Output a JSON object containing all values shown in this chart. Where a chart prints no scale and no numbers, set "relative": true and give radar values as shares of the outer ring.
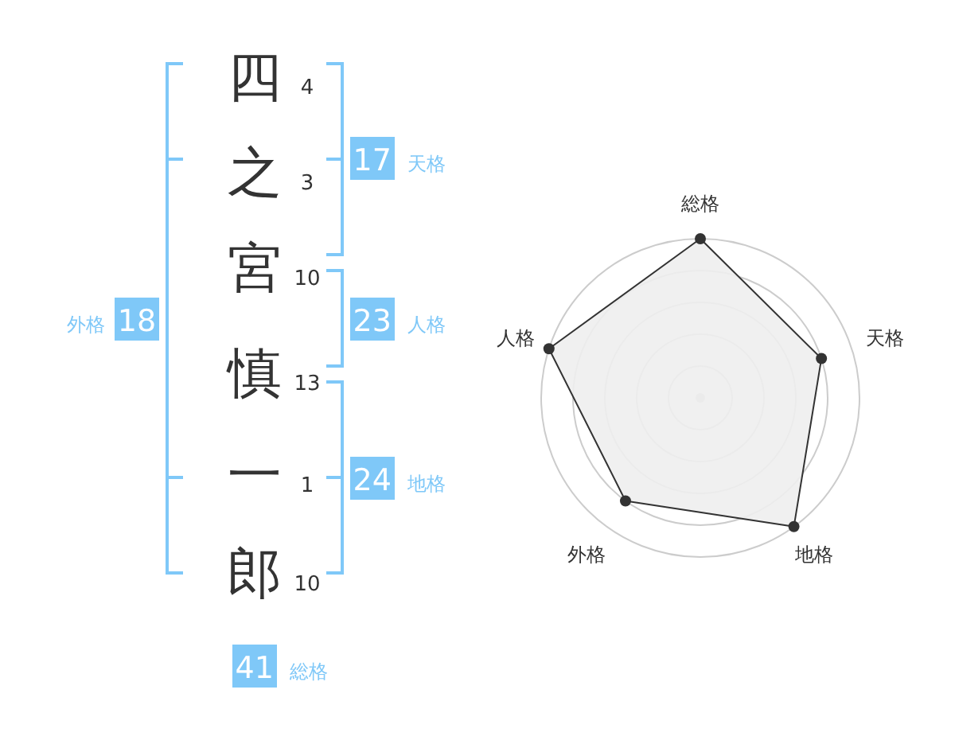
{
  "chart_data": [
    {
      "type": "other",
      "categories": [
        "四",
        "之",
        "宮",
        "慎",
        "一",
        "郎"
      ],
      "values": [
        4,
        3,
        10,
        13,
        1,
        10
      ],
      "data_labels": true,
      "annotations": [
        "17 天格",
        "23 人格",
        "24 地格",
        "外格 18",
        "41 総格"
      ]
    },
    {
      "type": "radar",
      "categories": [
        "総格",
        "天格",
        "地格",
        "外格",
        "人格"
      ],
      "relative": true,
      "marker": "circle",
      "series": [
        {
          "color": "#333333",
          "values": [
            1,
            0.8,
            1,
            0.8,
            1
          ]
        }
      ]
    }
  ]
}
